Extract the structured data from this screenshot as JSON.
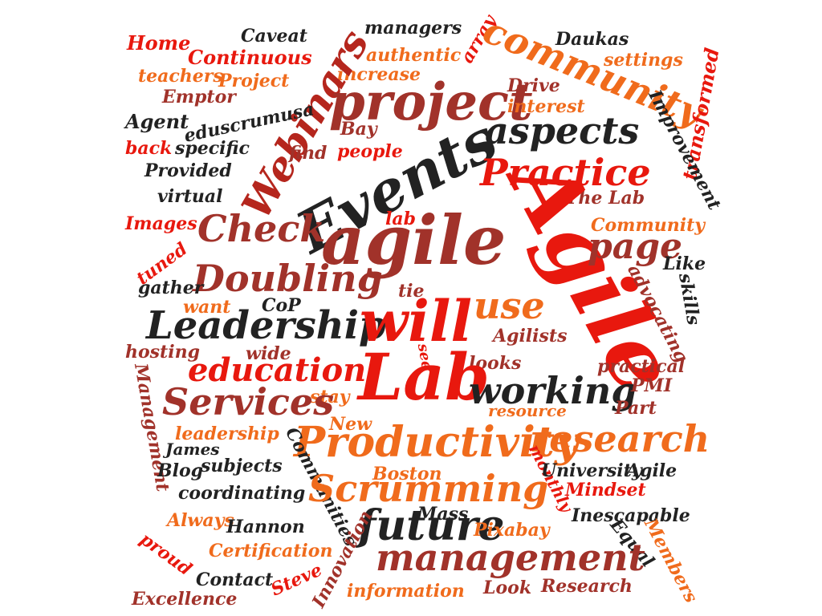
{
  "palette": {
    "black": "#222222",
    "red": "#e8180e",
    "orange": "#f06b1c",
    "brown": "#a1322a",
    "darkred": "#b5261d"
  },
  "words": [
    "Home",
    "Caveat",
    "managers",
    "Daukas",
    "Continuous",
    "authentic",
    "array",
    "community",
    "settings",
    "teachers",
    "Project",
    "increase",
    "Drive",
    "Emptor",
    "Webinars",
    "project",
    "interest",
    "transformed",
    "Agent",
    "eduscrumusa",
    "Bay",
    "aspects",
    "Improvement",
    "back",
    "specific",
    "find",
    "people",
    "Events",
    "Practice",
    "Provided",
    "virtual",
    "The Lab",
    "Images",
    "Check",
    "agile",
    "lab",
    "Agile",
    "Community",
    "page",
    "tuned",
    "Doubling",
    "Like",
    "gather",
    "tie",
    "use",
    "advocating",
    "skills",
    "want",
    "CoP",
    "Leadership",
    "will",
    "hosting",
    "wide",
    "see",
    "Agilists",
    "looks",
    "practical",
    "education",
    "Lab",
    "working",
    "PMI",
    "Management",
    "stay",
    "Services",
    "resource",
    "Part",
    "New",
    "James",
    "leadership",
    "Productivity",
    "research",
    "Blog",
    "subjects",
    "Communities",
    "Boston",
    "monthly",
    "University",
    "Agile",
    "coordinating",
    "Scrumming",
    "Mindset",
    "Always",
    "Hannon",
    "Mass",
    "future",
    "Inescapable",
    "proud",
    "Pixabay",
    "Equal",
    "Certification",
    "Innovation",
    "management",
    "Members",
    "Contact",
    "Steve",
    "Excellence",
    "information",
    "Look",
    "Research"
  ]
}
